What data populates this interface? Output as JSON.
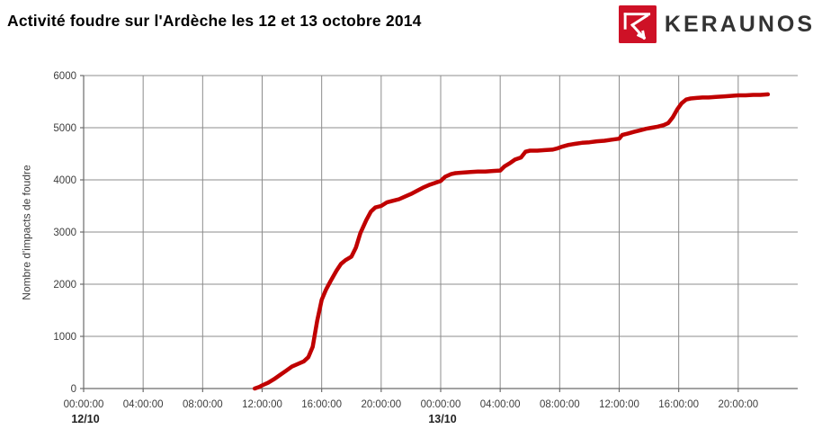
{
  "header": {
    "title": "Activité foudre sur l'Ardèche les 12 et 13 octobre 2014",
    "logo": {
      "brand": "KERAUNOS",
      "mark_icon": "keraunos-lightning-k-icon",
      "mark_color": "#CE1126",
      "text_color": "#333333"
    }
  },
  "chart_data": {
    "type": "line",
    "title": "Activité foudre sur l'Ardèche les 12 et 13 octobre 2014",
    "xlabel": "",
    "ylabel": "Nombre d'impacts de foudre",
    "ylim": [
      0,
      6000
    ],
    "xlim_hours_from_12oct_midnight": [
      0,
      48
    ],
    "grid": true,
    "legend_position": "none",
    "line_color": "#C00000",
    "grid_color": "#8C8C8C",
    "axis_color": "#6B6B6B",
    "tick_label_color": "#3D3D3D",
    "y_ticks": [
      0,
      1000,
      2000,
      3000,
      4000,
      5000,
      6000
    ],
    "x_ticks": [
      {
        "t": 0,
        "label": "00:00:00"
      },
      {
        "t": 4,
        "label": "04:00:00"
      },
      {
        "t": 8,
        "label": "08:00:00"
      },
      {
        "t": 12,
        "label": "12:00:00"
      },
      {
        "t": 16,
        "label": "16:00:00"
      },
      {
        "t": 20,
        "label": "20:00:00"
      },
      {
        "t": 24,
        "label": "00:00:00"
      },
      {
        "t": 28,
        "label": "04:00:00"
      },
      {
        "t": 32,
        "label": "08:00:00"
      },
      {
        "t": 36,
        "label": "12:00:00"
      },
      {
        "t": 40,
        "label": "16:00:00"
      },
      {
        "t": 44,
        "label": "20:00:00"
      }
    ],
    "x_date_labels": [
      {
        "t": 0,
        "label": "12/10"
      },
      {
        "t": 24,
        "label": "13/10"
      }
    ],
    "series": [
      {
        "color": "#C00000",
        "points": [
          [
            11.5,
            0
          ],
          [
            11.8,
            30
          ],
          [
            12,
            60
          ],
          [
            12.4,
            110
          ],
          [
            12.8,
            180
          ],
          [
            13.2,
            260
          ],
          [
            13.6,
            340
          ],
          [
            14,
            420
          ],
          [
            14.4,
            470
          ],
          [
            14.8,
            520
          ],
          [
            15.1,
            600
          ],
          [
            15.4,
            800
          ],
          [
            15.7,
            1300
          ],
          [
            16,
            1700
          ],
          [
            16.3,
            1900
          ],
          [
            16.6,
            2060
          ],
          [
            17,
            2260
          ],
          [
            17.3,
            2390
          ],
          [
            17.6,
            2460
          ],
          [
            18,
            2530
          ],
          [
            18.3,
            2700
          ],
          [
            18.6,
            2980
          ],
          [
            19,
            3230
          ],
          [
            19.3,
            3390
          ],
          [
            19.6,
            3470
          ],
          [
            20,
            3500
          ],
          [
            20.4,
            3570
          ],
          [
            20.8,
            3600
          ],
          [
            21.2,
            3630
          ],
          [
            21.6,
            3680
          ],
          [
            22,
            3730
          ],
          [
            22.4,
            3790
          ],
          [
            22.8,
            3850
          ],
          [
            23.2,
            3900
          ],
          [
            23.6,
            3940
          ],
          [
            24,
            3980
          ],
          [
            24.3,
            4060
          ],
          [
            24.7,
            4110
          ],
          [
            25,
            4130
          ],
          [
            25.5,
            4140
          ],
          [
            26,
            4150
          ],
          [
            26.5,
            4160
          ],
          [
            27,
            4160
          ],
          [
            27.5,
            4170
          ],
          [
            28,
            4180
          ],
          [
            28.3,
            4260
          ],
          [
            28.7,
            4330
          ],
          [
            29,
            4390
          ],
          [
            29.4,
            4430
          ],
          [
            29.7,
            4540
          ],
          [
            30,
            4560
          ],
          [
            30.5,
            4560
          ],
          [
            31,
            4570
          ],
          [
            31.5,
            4580
          ],
          [
            31.8,
            4600
          ],
          [
            32.2,
            4640
          ],
          [
            32.6,
            4670
          ],
          [
            33,
            4690
          ],
          [
            33.5,
            4710
          ],
          [
            34,
            4720
          ],
          [
            34.5,
            4740
          ],
          [
            35,
            4750
          ],
          [
            35.5,
            4770
          ],
          [
            36,
            4790
          ],
          [
            36.2,
            4860
          ],
          [
            36.6,
            4890
          ],
          [
            37,
            4920
          ],
          [
            37.4,
            4950
          ],
          [
            37.8,
            4980
          ],
          [
            38.2,
            5000
          ],
          [
            38.6,
            5020
          ],
          [
            39,
            5050
          ],
          [
            39.3,
            5090
          ],
          [
            39.6,
            5200
          ],
          [
            39.9,
            5350
          ],
          [
            40.2,
            5470
          ],
          [
            40.5,
            5540
          ],
          [
            40.8,
            5560
          ],
          [
            41.2,
            5570
          ],
          [
            41.6,
            5580
          ],
          [
            42,
            5580
          ],
          [
            42.5,
            5590
          ],
          [
            43,
            5600
          ],
          [
            43.5,
            5610
          ],
          [
            44,
            5620
          ],
          [
            44.5,
            5620
          ],
          [
            45,
            5630
          ],
          [
            45.5,
            5630
          ],
          [
            46,
            5640
          ]
        ]
      }
    ]
  }
}
